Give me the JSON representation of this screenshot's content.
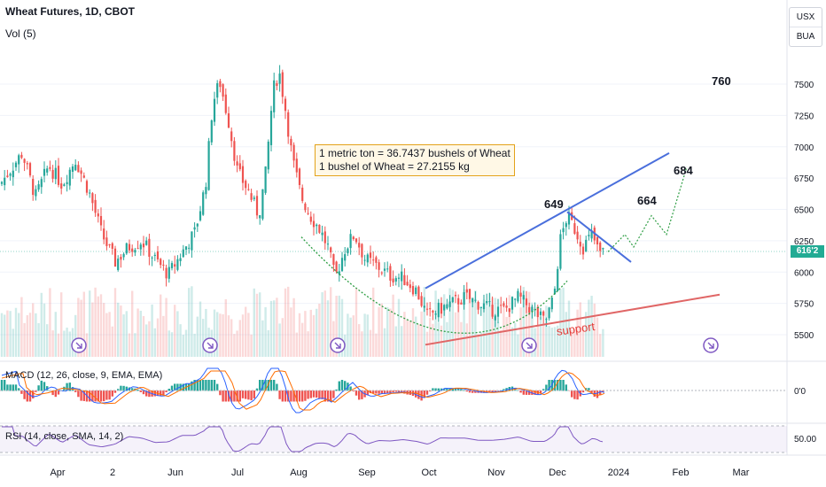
{
  "header": {
    "title": "Wheat Futures, 1D, CBOT",
    "volume_label": "Vol (5)"
  },
  "currency_box": [
    "USX",
    "BUA"
  ],
  "panes": {
    "macd_label": "MACD (12, 26, close, 9, EMA, EMA)",
    "macd_zero_label": "0'0",
    "rsi_label": "RSI (14, close, SMA, 14, 2)",
    "rsi_mid_label": "50.00"
  },
  "annotations": {
    "note_line_1": "1 metric ton = 36.7437 bushels of Wheat",
    "note_line_2": "1 bushel of Wheat = 27.2155 kg",
    "level_760": "760",
    "level_684": "684",
    "level_664": "664",
    "level_649": "649",
    "support": "support"
  },
  "current_price_label": "616'2",
  "chart_data": {
    "type": "candlestick",
    "symbol": "Wheat Futures",
    "interval": "1D",
    "exchange": "CBOT",
    "price_axis_ticks": [
      "5500",
      "5750",
      "6000",
      "6250",
      "6500",
      "6750",
      "7000",
      "7250",
      "7500"
    ],
    "x_axis_ticks": [
      "Apr",
      "2",
      "Jun",
      "Jul",
      "Aug",
      "Sep",
      "Oct",
      "Nov",
      "Dec",
      "2024",
      "Feb",
      "Mar"
    ],
    "current_price": "616'2",
    "close_path": [
      [
        0,
        6700
      ],
      [
        12,
        6820
      ],
      [
        25,
        6950
      ],
      [
        40,
        6600
      ],
      [
        55,
        6850
      ],
      [
        70,
        6700
      ],
      [
        85,
        6900
      ],
      [
        100,
        6650
      ],
      [
        115,
        6300
      ],
      [
        130,
        6080
      ],
      [
        145,
        6200
      ],
      [
        160,
        6250
      ],
      [
        175,
        6100
      ],
      [
        190,
        5980
      ],
      [
        205,
        6150
      ],
      [
        220,
        6320
      ],
      [
        232,
        6700
      ],
      [
        240,
        7350
      ],
      [
        248,
        7520
      ],
      [
        258,
        7200
      ],
      [
        268,
        6800
      ],
      [
        280,
        6650
      ],
      [
        292,
        6450
      ],
      [
        300,
        6800
      ],
      [
        308,
        7450
      ],
      [
        315,
        7600
      ],
      [
        322,
        7300
      ],
      [
        330,
        6900
      ],
      [
        340,
        6600
      ],
      [
        350,
        6450
      ],
      [
        360,
        6350
      ],
      [
        370,
        6200
      ],
      [
        378,
        5950
      ],
      [
        390,
        6200
      ],
      [
        400,
        6300
      ],
      [
        412,
        6100
      ],
      [
        425,
        6050
      ],
      [
        440,
        5970
      ],
      [
        455,
        5950
      ],
      [
        470,
        5850
      ],
      [
        482,
        5650
      ],
      [
        495,
        5700
      ],
      [
        510,
        5750
      ],
      [
        525,
        5800
      ],
      [
        540,
        5750
      ],
      [
        555,
        5700
      ],
      [
        570,
        5700
      ],
      [
        585,
        5800
      ],
      [
        600,
        5700
      ],
      [
        615,
        5600
      ],
      [
        625,
        5800
      ],
      [
        632,
        6250
      ],
      [
        640,
        6450
      ],
      [
        648,
        6350
      ],
      [
        658,
        6200
      ],
      [
        668,
        6300
      ],
      [
        676,
        6150
      ],
      [
        684,
        6162
      ]
    ],
    "projection_path": [
      [
        686,
        6162
      ],
      [
        705,
        6300
      ],
      [
        715,
        6200
      ],
      [
        735,
        6450
      ],
      [
        752,
        6300
      ],
      [
        775,
        6840
      ]
    ],
    "trendlines": [
      {
        "from": [
          480,
          5870
        ],
        "to": [
          755,
          6950
        ],
        "color": "#4a6fdc"
      },
      {
        "from": [
          480,
          5420
        ],
        "to": [
          812,
          5820
        ],
        "color": "#e06666"
      },
      {
        "from": [
          640,
          6480
        ],
        "to": [
          712,
          6080
        ],
        "color": "#4a6fdc"
      }
    ],
    "curve": {
      "color": "#2e9e44",
      "from": [
        340,
        6280
      ],
      "bottom": [
        515,
        5370
      ],
      "to": [
        640,
        5930
      ]
    },
    "macd_zero_line": true,
    "rsi_mid_line": 50
  }
}
